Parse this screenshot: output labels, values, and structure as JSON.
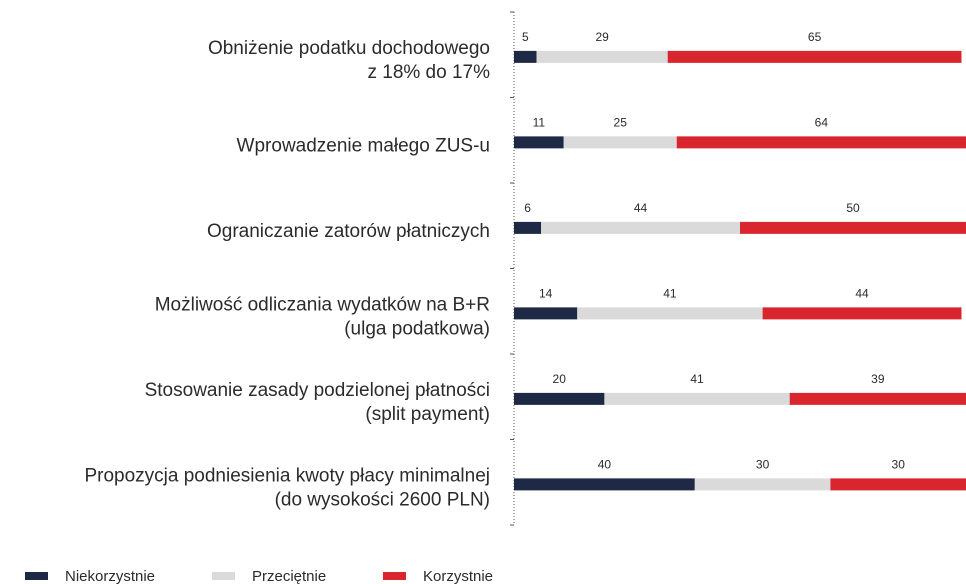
{
  "chart_data": {
    "type": "stacked-bar-horizontal",
    "categories": [
      [
        "Obniżenie podatku dochodowego",
        "z 18% do 17%"
      ],
      [
        "Wprowadzenie małego ZUS-u"
      ],
      [
        "Ograniczanie zatorów płatniczych"
      ],
      [
        "Możliwość odliczania wydatków na B+R",
        "(ulga podatkowa)"
      ],
      [
        "Stosowanie zasady podzielonej płatności",
        "(split payment)"
      ],
      [
        "Propozycja podniesienia kwoty płacy minimalnej",
        "(do wysokości 2600 PLN)"
      ]
    ],
    "series": [
      {
        "name": "Niekorzystnie",
        "color": "#1e2a45",
        "values": [
          5,
          11,
          6,
          14,
          20,
          40
        ]
      },
      {
        "name": "Przeciętnie",
        "color": "#dadada",
        "values": [
          29,
          25,
          44,
          41,
          41,
          30
        ]
      },
      {
        "name": "Korzystnie",
        "color": "#d9262e",
        "values": [
          65,
          64,
          50,
          44,
          39,
          30
        ]
      }
    ]
  }
}
